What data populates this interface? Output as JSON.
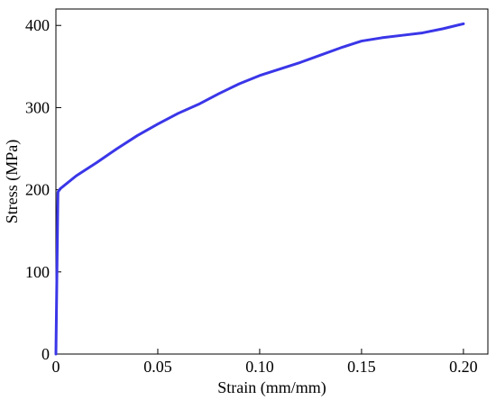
{
  "chart_data": {
    "type": "line",
    "title": "",
    "xlabel": "Strain (mm/mm)",
    "ylabel": "Stress (MPa)",
    "xlim": [
      0,
      0.212
    ],
    "ylim": [
      0,
      420
    ],
    "xticks": [
      0,
      0.05,
      0.1,
      0.15,
      0.2
    ],
    "xtick_labels": [
      "0",
      "0.05",
      "0.10",
      "0.15",
      "0.20"
    ],
    "yticks": [
      0,
      100,
      200,
      300,
      400
    ],
    "ytick_labels": [
      "0",
      "100",
      "200",
      "300",
      "400"
    ],
    "grid": false,
    "legend": false,
    "series": [
      {
        "color": "#3a36e8",
        "x": [
          0,
          0.0005,
          0.001,
          0.002,
          0.01,
          0.02,
          0.03,
          0.04,
          0.05,
          0.06,
          0.07,
          0.08,
          0.09,
          0.1,
          0.11,
          0.12,
          0.13,
          0.14,
          0.145,
          0.15,
          0.16,
          0.17,
          0.18,
          0.19,
          0.2
        ],
        "y": [
          0,
          100,
          197,
          201,
          217,
          233,
          250,
          266,
          280,
          293,
          304,
          317,
          329,
          339,
          347,
          355,
          364,
          373,
          377,
          381,
          385,
          388,
          391,
          396,
          402
        ]
      }
    ]
  }
}
